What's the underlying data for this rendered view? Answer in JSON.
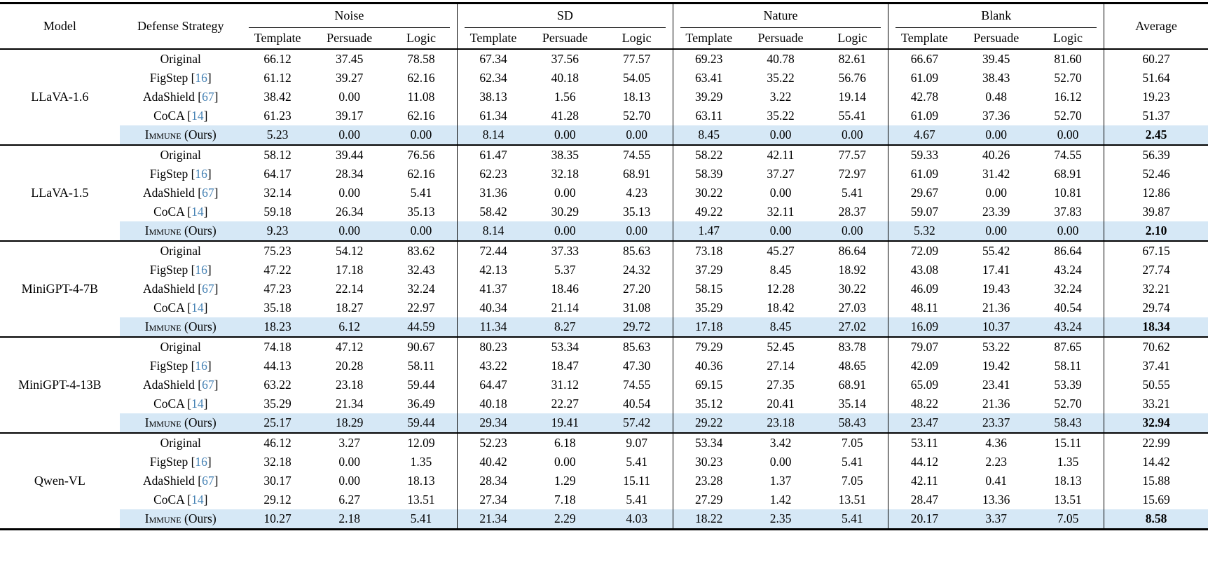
{
  "colors": {
    "citation_link": "#4682b4",
    "highlight_bg": "#d6e8f6",
    "rule_color": "#000000"
  },
  "header": {
    "model": "Model",
    "defense": "Defense Strategy",
    "average": "Average",
    "groups": [
      {
        "label": "Noise",
        "subs": [
          "Template",
          "Persuade",
          "Logic"
        ]
      },
      {
        "label": "SD",
        "subs": [
          "Template",
          "Persuade",
          "Logic"
        ]
      },
      {
        "label": "Nature",
        "subs": [
          "Template",
          "Persuade",
          "Logic"
        ]
      },
      {
        "label": "Blank",
        "subs": [
          "Template",
          "Persuade",
          "Logic"
        ]
      }
    ]
  },
  "models": [
    {
      "name": "LLaVA-1.6",
      "rows": [
        {
          "defense": "Original",
          "values": [
            "66.12",
            "37.45",
            "78.58",
            "67.34",
            "37.56",
            "77.57",
            "69.23",
            "40.78",
            "82.61",
            "66.67",
            "39.45",
            "81.60"
          ],
          "average": "60.27"
        },
        {
          "defense": "FigStep",
          "cite": "16",
          "values": [
            "61.12",
            "39.27",
            "62.16",
            "62.34",
            "40.18",
            "54.05",
            "63.41",
            "35.22",
            "56.76",
            "61.09",
            "38.43",
            "52.70"
          ],
          "average": "51.64"
        },
        {
          "defense": "AdaShield",
          "cite": "67",
          "values": [
            "38.42",
            "0.00",
            "11.08",
            "38.13",
            "1.56",
            "18.13",
            "39.29",
            "3.22",
            "19.14",
            "42.78",
            "0.48",
            "16.12"
          ],
          "average": "19.23"
        },
        {
          "defense": "CoCA",
          "cite": "14",
          "values": [
            "61.23",
            "39.17",
            "62.16",
            "61.34",
            "41.28",
            "52.70",
            "63.11",
            "35.22",
            "55.41",
            "61.09",
            "37.36",
            "52.70"
          ],
          "average": "51.37"
        },
        {
          "defense": "Immune",
          "suffix": "(Ours)",
          "smallcaps": true,
          "highlight": true,
          "values": [
            "5.23",
            "0.00",
            "0.00",
            "8.14",
            "0.00",
            "0.00",
            "8.45",
            "0.00",
            "0.00",
            "4.67",
            "0.00",
            "0.00"
          ],
          "average": "2.45",
          "average_bold": true
        }
      ]
    },
    {
      "name": "LLaVA-1.5",
      "rows": [
        {
          "defense": "Original",
          "values": [
            "58.12",
            "39.44",
            "76.56",
            "61.47",
            "38.35",
            "74.55",
            "58.22",
            "42.11",
            "77.57",
            "59.33",
            "40.26",
            "74.55"
          ],
          "average": "56.39"
        },
        {
          "defense": "FigStep",
          "cite": "16",
          "values": [
            "64.17",
            "28.34",
            "62.16",
            "62.23",
            "32.18",
            "68.91",
            "58.39",
            "37.27",
            "72.97",
            "61.09",
            "31.42",
            "68.91"
          ],
          "average": "52.46"
        },
        {
          "defense": "AdaShield",
          "cite": "67",
          "values": [
            "32.14",
            "0.00",
            "5.41",
            "31.36",
            "0.00",
            "4.23",
            "30.22",
            "0.00",
            "5.41",
            "29.67",
            "0.00",
            "10.81"
          ],
          "average": "12.86"
        },
        {
          "defense": "CoCA",
          "cite": "14",
          "values": [
            "59.18",
            "26.34",
            "35.13",
            "58.42",
            "30.29",
            "35.13",
            "49.22",
            "32.11",
            "28.37",
            "59.07",
            "23.39",
            "37.83"
          ],
          "average": "39.87"
        },
        {
          "defense": "Immune",
          "suffix": "(Ours)",
          "smallcaps": true,
          "highlight": true,
          "values": [
            "9.23",
            "0.00",
            "0.00",
            "8.14",
            "0.00",
            "0.00",
            "1.47",
            "0.00",
            "0.00",
            "5.32",
            "0.00",
            "0.00"
          ],
          "average": "2.10",
          "average_bold": true
        }
      ]
    },
    {
      "name": "MiniGPT-4-7B",
      "rows": [
        {
          "defense": "Original",
          "values": [
            "75.23",
            "54.12",
            "83.62",
            "72.44",
            "37.33",
            "85.63",
            "73.18",
            "45.27",
            "86.64",
            "72.09",
            "55.42",
            "86.64"
          ],
          "average": "67.15"
        },
        {
          "defense": "FigStep",
          "cite": "16",
          "values": [
            "47.22",
            "17.18",
            "32.43",
            "42.13",
            "5.37",
            "24.32",
            "37.29",
            "8.45",
            "18.92",
            "43.08",
            "17.41",
            "43.24"
          ],
          "average": "27.74"
        },
        {
          "defense": "AdaShield",
          "cite": "67",
          "values": [
            "47.23",
            "22.14",
            "32.24",
            "41.37",
            "18.46",
            "27.20",
            "58.15",
            "12.28",
            "30.22",
            "46.09",
            "19.43",
            "32.24"
          ],
          "average": "32.21"
        },
        {
          "defense": "CoCA",
          "cite": "14",
          "values": [
            "35.18",
            "18.27",
            "22.97",
            "40.34",
            "21.14",
            "31.08",
            "35.29",
            "18.42",
            "27.03",
            "48.11",
            "21.36",
            "40.54"
          ],
          "average": "29.74"
        },
        {
          "defense": "Immune",
          "suffix": "(Ours)",
          "smallcaps": true,
          "highlight": true,
          "values": [
            "18.23",
            "6.12",
            "44.59",
            "11.34",
            "8.27",
            "29.72",
            "17.18",
            "8.45",
            "27.02",
            "16.09",
            "10.37",
            "43.24"
          ],
          "average": "18.34",
          "average_bold": true
        }
      ]
    },
    {
      "name": "MiniGPT-4-13B",
      "rows": [
        {
          "defense": "Original",
          "values": [
            "74.18",
            "47.12",
            "90.67",
            "80.23",
            "53.34",
            "85.63",
            "79.29",
            "52.45",
            "83.78",
            "79.07",
            "53.22",
            "87.65"
          ],
          "average": "70.62"
        },
        {
          "defense": "FigStep",
          "cite": "16",
          "values": [
            "44.13",
            "20.28",
            "58.11",
            "43.22",
            "18.47",
            "47.30",
            "40.36",
            "27.14",
            "48.65",
            "42.09",
            "19.42",
            "58.11"
          ],
          "average": "37.41"
        },
        {
          "defense": "AdaShield",
          "cite": "67",
          "values": [
            "63.22",
            "23.18",
            "59.44",
            "64.47",
            "31.12",
            "74.55",
            "69.15",
            "27.35",
            "68.91",
            "65.09",
            "23.41",
            "53.39"
          ],
          "average": "50.55"
        },
        {
          "defense": "CoCA",
          "cite": "14",
          "values": [
            "35.29",
            "21.34",
            "36.49",
            "40.18",
            "22.27",
            "40.54",
            "35.12",
            "20.41",
            "35.14",
            "48.22",
            "21.36",
            "52.70"
          ],
          "average": "33.21"
        },
        {
          "defense": "Immune",
          "suffix": "(Ours)",
          "smallcaps": true,
          "highlight": true,
          "values": [
            "25.17",
            "18.29",
            "59.44",
            "29.34",
            "19.41",
            "57.42",
            "29.22",
            "23.18",
            "58.43",
            "23.47",
            "23.37",
            "58.43"
          ],
          "average": "32.94",
          "average_bold": true
        }
      ]
    },
    {
      "name": "Qwen-VL",
      "rows": [
        {
          "defense": "Original",
          "values": [
            "46.12",
            "3.27",
            "12.09",
            "52.23",
            "6.18",
            "9.07",
            "53.34",
            "3.42",
            "7.05",
            "53.11",
            "4.36",
            "15.11"
          ],
          "average": "22.99"
        },
        {
          "defense": "FigStep",
          "cite": "16",
          "values": [
            "32.18",
            "0.00",
            "1.35",
            "40.42",
            "0.00",
            "5.41",
            "30.23",
            "0.00",
            "5.41",
            "44.12",
            "2.23",
            "1.35"
          ],
          "average": "14.42"
        },
        {
          "defense": "AdaShield",
          "cite": "67",
          "values": [
            "30.17",
            "0.00",
            "18.13",
            "28.34",
            "1.29",
            "15.11",
            "23.28",
            "1.37",
            "7.05",
            "42.11",
            "0.41",
            "18.13"
          ],
          "average": "15.88"
        },
        {
          "defense": "CoCA",
          "cite": "14",
          "values": [
            "29.12",
            "6.27",
            "13.51",
            "27.34",
            "7.18",
            "5.41",
            "27.29",
            "1.42",
            "13.51",
            "28.47",
            "13.36",
            "13.51"
          ],
          "average": "15.69"
        },
        {
          "defense": "Immune",
          "suffix": "(Ours)",
          "smallcaps": true,
          "highlight": true,
          "values": [
            "10.27",
            "2.18",
            "5.41",
            "21.34",
            "2.29",
            "4.03",
            "18.22",
            "2.35",
            "5.41",
            "20.17",
            "3.37",
            "7.05"
          ],
          "average": "8.58",
          "average_bold": true
        }
      ]
    }
  ]
}
